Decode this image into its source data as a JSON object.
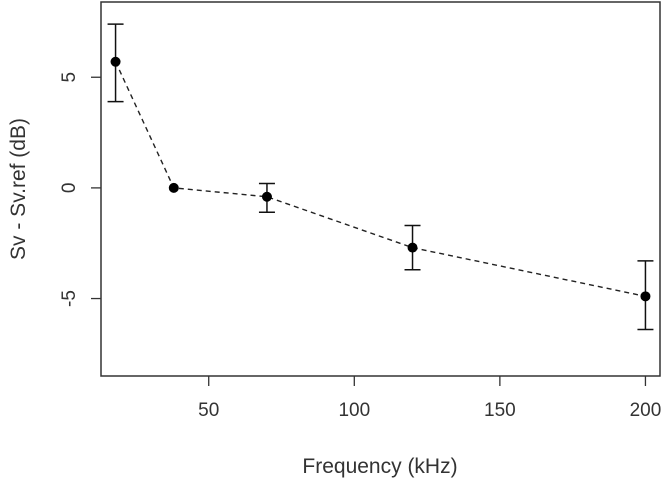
{
  "chart_data": {
    "type": "scatter",
    "title": "",
    "xlabel": "Frequency (kHz)",
    "ylabel": "Sv - Sv.ref (dB)",
    "xlim": [
      13,
      205
    ],
    "ylim": [
      -8.5,
      8.4
    ],
    "x_ticks": [
      50,
      100,
      150,
      200
    ],
    "y_ticks": [
      -5,
      0,
      5
    ],
    "x_tick_labels": [
      "50",
      "100",
      "150",
      "200"
    ],
    "y_tick_labels": [
      "-5",
      "0",
      "5"
    ],
    "grid": false,
    "connector": "dashed",
    "series": [
      {
        "points": [
          {
            "x": 18,
            "y": 5.7,
            "lower": 3.9,
            "upper": 7.4
          },
          {
            "x": 38,
            "y": 0.0,
            "lower": null,
            "upper": null
          },
          {
            "x": 70,
            "y": -0.4,
            "lower": -1.1,
            "upper": 0.2
          },
          {
            "x": 120,
            "y": -2.7,
            "lower": -3.7,
            "upper": -1.7
          },
          {
            "x": 200,
            "y": -4.9,
            "lower": -6.4,
            "upper": -3.3
          }
        ]
      }
    ]
  }
}
